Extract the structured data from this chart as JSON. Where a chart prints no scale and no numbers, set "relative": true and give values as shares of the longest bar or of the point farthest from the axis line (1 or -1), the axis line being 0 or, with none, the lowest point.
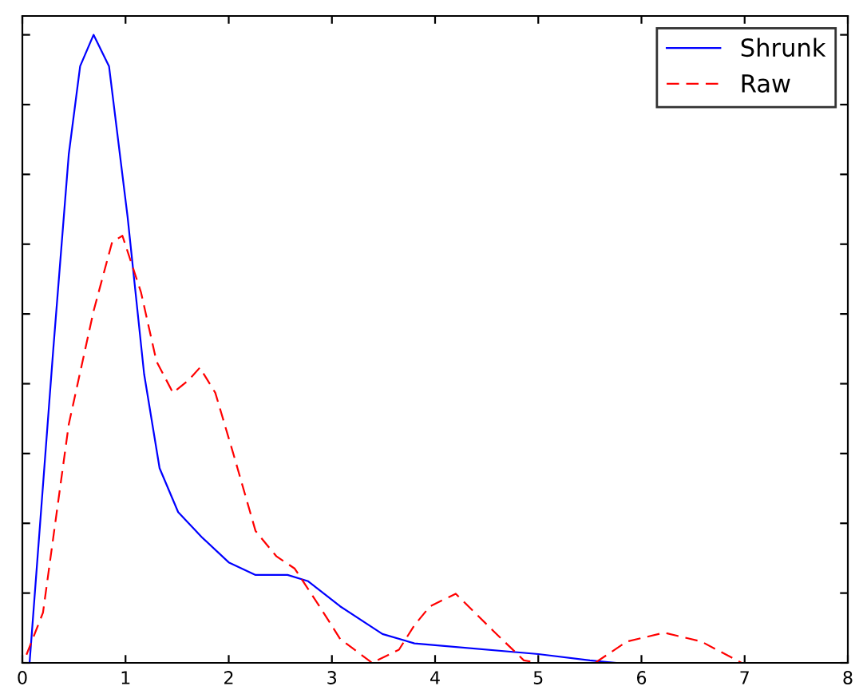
{
  "chart_data": {
    "type": "line",
    "relative": true,
    "tick_labels": "x",
    "xlim": [
      0,
      8
    ],
    "xticks": [
      0,
      1,
      2,
      3,
      4,
      5,
      6,
      7,
      8
    ],
    "legend": "top right",
    "grid": false,
    "series": [
      {
        "name": "Shrunk",
        "color": "#0000ff",
        "line_style": "solid",
        "x": [
          0.07,
          0.3,
          0.45,
          0.56,
          0.69,
          0.84,
          1.02,
          1.18,
          1.33,
          1.51,
          1.74,
          2.0,
          2.26,
          2.57,
          2.77,
          3.08,
          3.49,
          3.8,
          4.0,
          5.0,
          5.5,
          5.75
        ],
        "values": [
          0,
          0.5,
          0.81,
          0.95,
          1,
          0.95,
          0.71,
          0.46,
          0.31,
          0.24,
          0.2,
          0.16,
          0.14,
          0.14,
          0.13,
          0.09,
          0.046,
          0.031,
          0.028,
          0.014,
          0.004,
          0
        ]
      },
      {
        "name": "Raw",
        "color": "#ff0000",
        "line_style": "dashed",
        "x": [
          0.04,
          0.2,
          0.45,
          0.69,
          0.87,
          0.97,
          1.15,
          1.3,
          1.46,
          1.61,
          1.72,
          1.87,
          2.05,
          2.26,
          2.46,
          2.64,
          2.88,
          3.08,
          3.39,
          3.65,
          3.8,
          3.95,
          4.2,
          4.57,
          4.86,
          5.0,
          5.55,
          5.86,
          6.22,
          6.58,
          6.97
        ],
        "values": [
          0.013,
          0.08,
          0.38,
          0.56,
          0.67,
          0.68,
          0.59,
          0.48,
          0.43,
          0.45,
          0.47,
          0.43,
          0.33,
          0.21,
          0.17,
          0.15,
          0.09,
          0.038,
          0,
          0.021,
          0.06,
          0.09,
          0.11,
          0.05,
          0.004,
          0,
          0,
          0.034,
          0.048,
          0.034,
          0
        ]
      }
    ]
  }
}
